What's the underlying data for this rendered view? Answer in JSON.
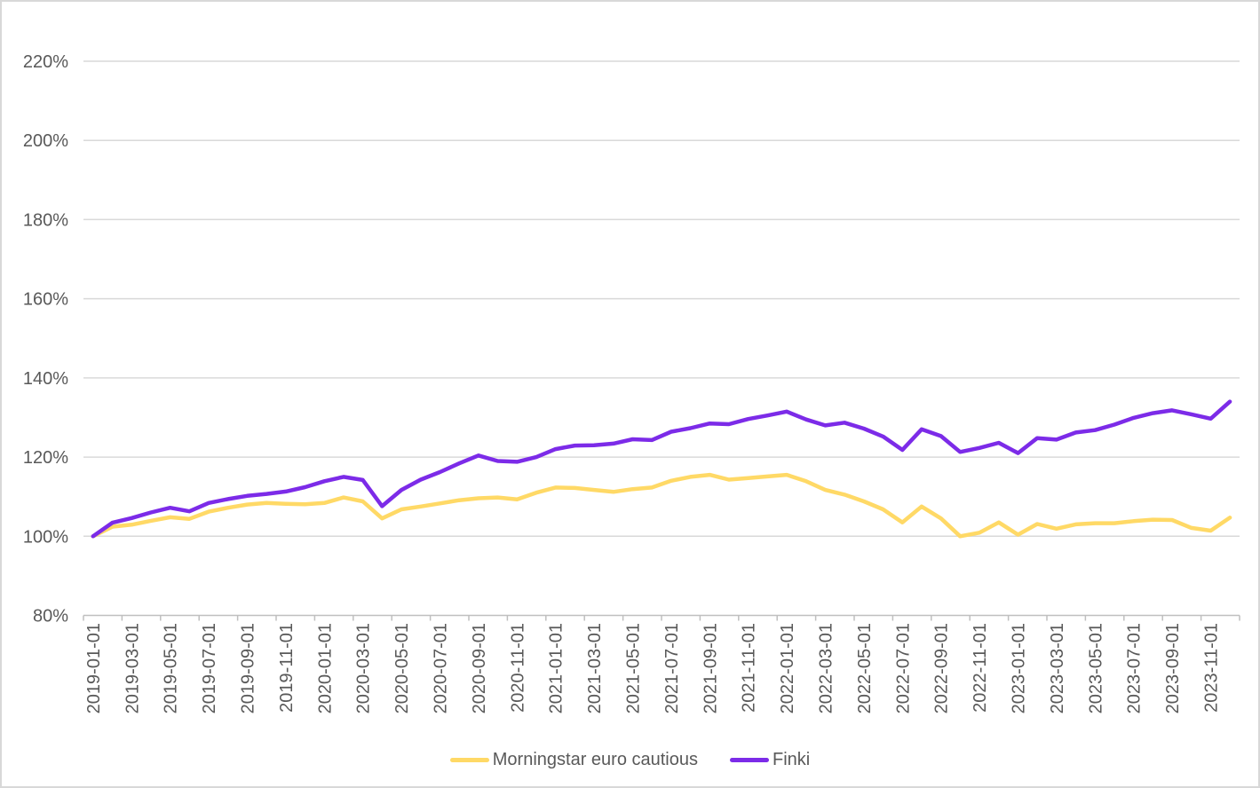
{
  "chart_data": {
    "type": "line",
    "title": "",
    "xlabel": "",
    "ylabel": "",
    "grid": "horizontal",
    "legend_position": "bottom",
    "y_axis": {
      "min": 80,
      "max": 220,
      "step": 20,
      "format": "percent",
      "tick_labels": [
        "80%",
        "100%",
        "120%",
        "140%",
        "160%",
        "180%",
        "200%",
        "220%"
      ]
    },
    "x_label_every": 2,
    "categories": [
      "2019-01-01",
      "2019-02-01",
      "2019-03-01",
      "2019-04-01",
      "2019-05-01",
      "2019-06-01",
      "2019-07-01",
      "2019-08-01",
      "2019-09-01",
      "2019-10-01",
      "2019-11-01",
      "2019-12-01",
      "2020-01-01",
      "2020-02-01",
      "2020-03-01",
      "2020-04-01",
      "2020-05-01",
      "2020-06-01",
      "2020-07-01",
      "2020-08-01",
      "2020-09-01",
      "2020-10-01",
      "2020-11-01",
      "2020-12-01",
      "2021-01-01",
      "2021-02-01",
      "2021-03-01",
      "2021-04-01",
      "2021-05-01",
      "2021-06-01",
      "2021-07-01",
      "2021-08-01",
      "2021-09-01",
      "2021-10-01",
      "2021-11-01",
      "2021-12-01",
      "2022-01-01",
      "2022-02-01",
      "2022-03-01",
      "2022-04-01",
      "2022-05-01",
      "2022-06-01",
      "2022-07-01",
      "2022-08-01",
      "2022-09-01",
      "2022-10-01",
      "2022-11-01",
      "2022-12-01",
      "2023-01-01",
      "2023-02-01",
      "2023-03-01",
      "2023-04-01",
      "2023-05-01",
      "2023-06-01",
      "2023-07-01",
      "2023-08-01",
      "2023-09-01",
      "2023-10-01",
      "2023-11-01",
      "2023-12-01"
    ],
    "series": [
      {
        "name": "Morningstar euro cautious",
        "color": "#FFD966",
        "values": [
          100.0,
          102.4,
          102.9,
          103.9,
          104.8,
          104.4,
          106.2,
          107.2,
          108.0,
          108.4,
          108.2,
          108.1,
          108.4,
          109.8,
          108.8,
          104.5,
          106.8,
          107.5,
          108.3,
          109.1,
          109.6,
          109.8,
          109.3,
          111.0,
          112.3,
          112.2,
          111.7,
          111.2,
          111.9,
          112.3,
          114.0,
          115.0,
          115.5,
          114.3,
          114.7,
          115.1,
          115.5,
          113.9,
          111.7,
          110.5,
          108.8,
          106.8,
          103.5,
          107.5,
          104.5,
          100.0,
          100.9,
          103.5,
          100.4,
          103.1,
          101.9,
          103.0,
          103.3,
          103.3,
          103.8,
          104.2,
          104.1,
          102.1,
          101.4,
          104.7
        ]
      },
      {
        "name": "Finki",
        "color": "#7C2BE8",
        "values": [
          100.0,
          103.4,
          104.6,
          106.0,
          107.2,
          106.3,
          108.4,
          109.4,
          110.2,
          110.7,
          111.3,
          112.4,
          113.9,
          115.0,
          114.2,
          107.6,
          111.7,
          114.3,
          116.2,
          118.4,
          120.4,
          119.0,
          118.8,
          120.0,
          122.0,
          122.9,
          123.0,
          123.4,
          124.5,
          124.3,
          126.4,
          127.3,
          128.5,
          128.3,
          129.6,
          130.5,
          131.5,
          129.5,
          128.0,
          128.7,
          127.2,
          125.2,
          121.8,
          127.0,
          125.3,
          121.3,
          122.3,
          123.6,
          121.0,
          124.8,
          124.4,
          126.2,
          126.8,
          128.2,
          129.9,
          131.1,
          131.8,
          130.8,
          129.7,
          134.0
        ]
      }
    ]
  },
  "style": {
    "gridline_color": "#d9d9d9",
    "axis_color": "#bfbfbf",
    "label_color": "#595959"
  }
}
